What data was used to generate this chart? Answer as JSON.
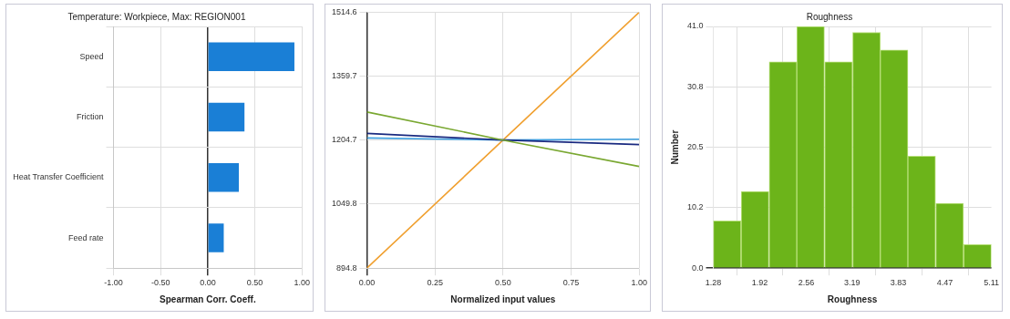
{
  "chart_data": [
    {
      "type": "bar",
      "orientation": "horizontal",
      "title": "Temperature: Workpiece, Max: REGION001",
      "xlabel": "Spearman Corr. Coeff.",
      "categories": [
        "Speed",
        "Friction",
        "Heat Transfer Coefficient",
        "Feed rate"
      ],
      "values": [
        0.92,
        0.39,
        0.33,
        0.17
      ],
      "color": "#1a7fd6",
      "xlim": [
        -1,
        1
      ],
      "xticks": [
        {
          "value": -1,
          "label": "-1.00"
        },
        {
          "value": -0.5,
          "label": "-0.50"
        },
        {
          "value": 0,
          "label": "0.00"
        },
        {
          "value": 0.5,
          "label": "0.50"
        },
        {
          "value": 1,
          "label": "1.00"
        }
      ],
      "grid": true
    },
    {
      "type": "line",
      "xlabel": "Normalized input values",
      "x": [
        0,
        0.5,
        1
      ],
      "series": [
        {
          "color": "#7aa832",
          "values": [
            1273,
            1205,
            1141
          ]
        },
        {
          "color": "#1a2a80",
          "values": [
            1221,
            1205,
            1194
          ]
        },
        {
          "color": "#3fa0e0",
          "values": [
            1210,
            1205,
            1207
          ]
        },
        {
          "color": "#f0a030",
          "values": [
            894.8,
            1205,
            1514.6
          ]
        }
      ],
      "xlim": [
        0,
        1
      ],
      "xticks": [
        {
          "value": 0,
          "label": "0.00"
        },
        0.25,
        {
          "value": 0.5,
          "label": "0.50"
        },
        0.75,
        {
          "value": 1,
          "label": "1.00"
        }
      ],
      "ylim": [
        894.8,
        1514.6
      ],
      "yticks": [
        894.8,
        1049.8,
        1204.7,
        1359.7,
        1514.6
      ],
      "grid": true
    },
    {
      "type": "histogram",
      "title": "Roughness",
      "xlabel": "Roughness",
      "ylabel": "Number",
      "bins": [
        1.28,
        1.66,
        2.05,
        2.43,
        2.81,
        3.2,
        3.58,
        3.96,
        4.34,
        4.73,
        5.11
      ],
      "values": [
        8,
        13,
        35,
        41,
        35,
        40,
        37,
        19,
        11,
        4
      ],
      "color": "#6cb41a",
      "xlim": [
        1.28,
        5.11
      ],
      "xticks": [
        1.28,
        1.92,
        2.56,
        3.19,
        3.83,
        4.47,
        5.11
      ],
      "ylim": [
        0,
        41
      ],
      "yticks": [
        {
          "value": 0,
          "label": "0.0"
        },
        {
          "value": 10.25,
          "label": "10.2"
        },
        {
          "value": 20.5,
          "label": "20.5"
        },
        {
          "value": 30.75,
          "label": "30.8"
        },
        {
          "value": 41,
          "label": "41.0"
        }
      ],
      "grid": true
    }
  ]
}
